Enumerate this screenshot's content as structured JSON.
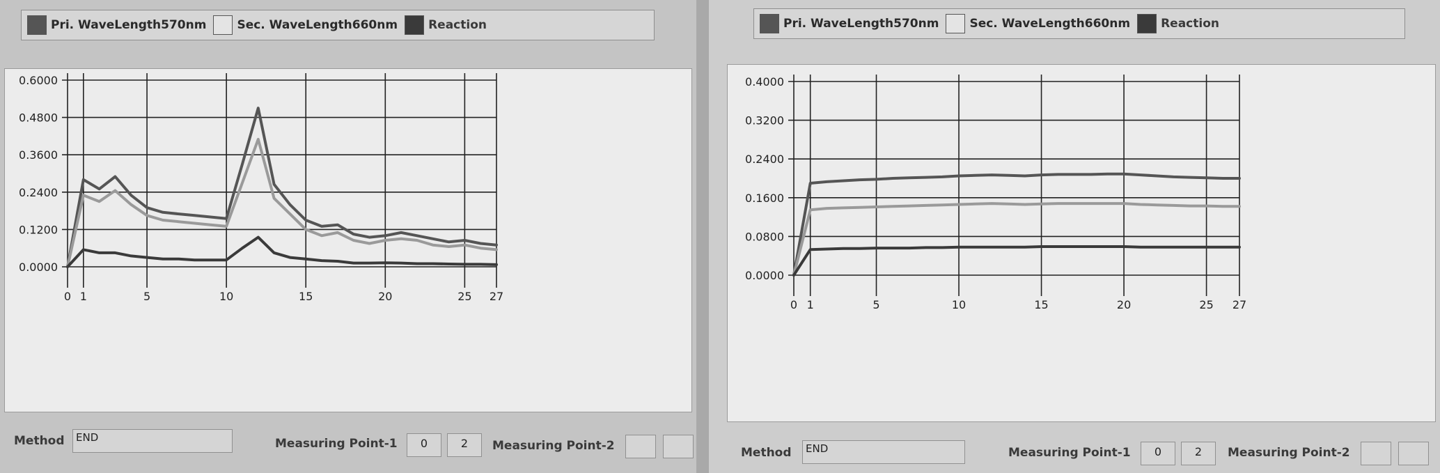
{
  "legend": {
    "items": [
      {
        "label": "Pri. WaveLength570nm",
        "color": "#555555"
      },
      {
        "label": "Sec. WaveLength660nm",
        "color": "#e4e4e4"
      },
      {
        "label": "Reaction",
        "color": "#3a3a3a"
      }
    ]
  },
  "panels": [
    {
      "method_label": "Method",
      "method_value": "END",
      "mp1_label": "Measuring Point-1",
      "mp1_values": [
        "0",
        "2"
      ],
      "mp2_label": "Measuring Point-2",
      "mp2_values": [
        "",
        ""
      ]
    },
    {
      "method_label": "Method",
      "method_value": "END",
      "mp1_label": "Measuring Point-1",
      "mp1_values": [
        "0",
        "2"
      ],
      "mp2_label": "Measuring Point-2",
      "mp2_values": [
        "",
        ""
      ]
    }
  ],
  "chart_data": [
    {
      "type": "line",
      "xlim": [
        0,
        27
      ],
      "ylim": [
        0,
        0.6
      ],
      "x_ticks": [
        0,
        1,
        5,
        10,
        15,
        20,
        25,
        27
      ],
      "y_ticks": [
        "0.0000",
        "0.1200",
        "0.2400",
        "0.3600",
        "0.4800",
        "0.6000"
      ],
      "y_tick_values": [
        0,
        0.12,
        0.24,
        0.36,
        0.48,
        0.6
      ],
      "x": [
        0,
        1,
        2,
        3,
        4,
        5,
        6,
        7,
        8,
        9,
        10,
        11,
        12,
        13,
        14,
        15,
        16,
        17,
        18,
        19,
        20,
        21,
        22,
        23,
        24,
        25,
        26,
        27
      ],
      "series": [
        {
          "name": "Pri. WaveLength570nm",
          "color": "#555555",
          "values": [
            0,
            0.28,
            0.25,
            0.29,
            0.23,
            0.19,
            0.175,
            0.17,
            0.165,
            0.16,
            0.155,
            0.33,
            0.51,
            0.265,
            0.2,
            0.15,
            0.13,
            0.135,
            0.105,
            0.095,
            0.1,
            0.11,
            0.1,
            0.09,
            0.08,
            0.085,
            0.075,
            0.07
          ]
        },
        {
          "name": "Sec. WaveLength660nm",
          "color": "#9a9a9a",
          "values": [
            0,
            0.23,
            0.21,
            0.245,
            0.2,
            0.165,
            0.15,
            0.145,
            0.14,
            0.135,
            0.13,
            0.27,
            0.41,
            0.22,
            0.17,
            0.12,
            0.1,
            0.11,
            0.085,
            0.075,
            0.085,
            0.09,
            0.085,
            0.07,
            0.065,
            0.07,
            0.06,
            0.055
          ]
        },
        {
          "name": "Reaction",
          "color": "#3a3a3a",
          "values": [
            0,
            0.055,
            0.045,
            0.045,
            0.035,
            0.03,
            0.025,
            0.025,
            0.022,
            0.022,
            0.022,
            0.06,
            0.095,
            0.045,
            0.03,
            0.025,
            0.02,
            0.018,
            0.012,
            0.012,
            0.013,
            0.012,
            0.01,
            0.01,
            0.009,
            0.008,
            0.008,
            0.007
          ]
        }
      ]
    },
    {
      "type": "line",
      "xlim": [
        0,
        27
      ],
      "ylim": [
        0,
        0.4
      ],
      "x_ticks": [
        0,
        1,
        5,
        10,
        15,
        20,
        25,
        27
      ],
      "y_ticks": [
        "0.0000",
        "0.0800",
        "0.1600",
        "0.2400",
        "0.3200",
        "0.4000"
      ],
      "y_tick_values": [
        0,
        0.08,
        0.16,
        0.24,
        0.32,
        0.4
      ],
      "x": [
        0,
        1,
        2,
        3,
        4,
        5,
        6,
        7,
        8,
        9,
        10,
        11,
        12,
        13,
        14,
        15,
        16,
        17,
        18,
        19,
        20,
        21,
        22,
        23,
        24,
        25,
        26,
        27
      ],
      "series": [
        {
          "name": "Pri. WaveLength570nm",
          "color": "#555555",
          "values": [
            0,
            0.19,
            0.193,
            0.195,
            0.197,
            0.198,
            0.2,
            0.201,
            0.202,
            0.203,
            0.205,
            0.206,
            0.207,
            0.206,
            0.205,
            0.207,
            0.208,
            0.208,
            0.208,
            0.209,
            0.209,
            0.207,
            0.205,
            0.203,
            0.202,
            0.201,
            0.2,
            0.2
          ]
        },
        {
          "name": "Sec. WaveLength660nm",
          "color": "#9a9a9a",
          "values": [
            0,
            0.135,
            0.138,
            0.139,
            0.14,
            0.141,
            0.142,
            0.143,
            0.144,
            0.145,
            0.146,
            0.147,
            0.148,
            0.147,
            0.146,
            0.147,
            0.148,
            0.148,
            0.148,
            0.148,
            0.148,
            0.146,
            0.145,
            0.144,
            0.143,
            0.143,
            0.142,
            0.142
          ]
        },
        {
          "name": "Reaction",
          "color": "#3a3a3a",
          "values": [
            0,
            0.053,
            0.054,
            0.055,
            0.055,
            0.056,
            0.056,
            0.056,
            0.057,
            0.057,
            0.058,
            0.058,
            0.058,
            0.058,
            0.058,
            0.059,
            0.059,
            0.059,
            0.059,
            0.059,
            0.059,
            0.058,
            0.058,
            0.058,
            0.058,
            0.058,
            0.058,
            0.058
          ]
        }
      ]
    }
  ]
}
